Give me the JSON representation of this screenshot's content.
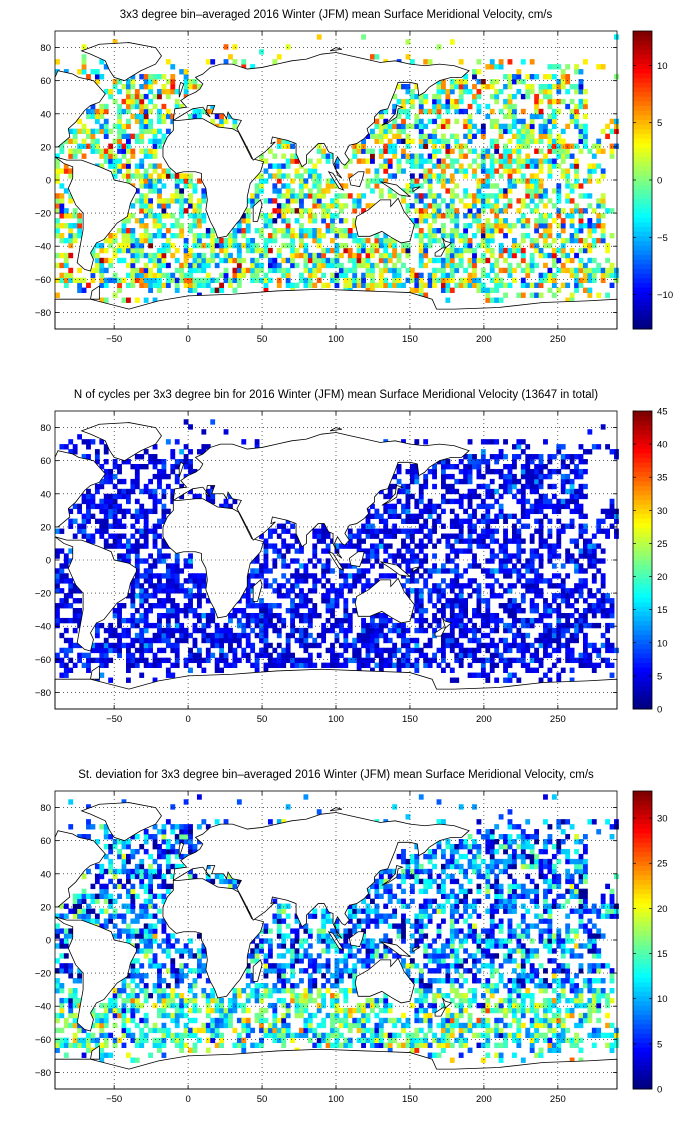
{
  "chart_data": [
    {
      "type": "heatmap",
      "title": "3x3 degree bin–averaged 2016 Winter (JFM) mean Surface Meridional Velocity, cm/s",
      "xlim": [
        -90,
        290
      ],
      "ylim": [
        -90,
        90
      ],
      "xticks": [
        -50,
        0,
        50,
        100,
        150,
        200,
        250
      ],
      "yticks": [
        80,
        60,
        40,
        20,
        0,
        -20,
        -40,
        -60,
        -80
      ],
      "bin_size_deg": 3,
      "grid": true,
      "colormap": "jet",
      "clim": [
        -13,
        13
      ],
      "colorbar_ticks": [
        10,
        5,
        0,
        -5,
        -10
      ],
      "colorbar_position": "right"
    },
    {
      "type": "heatmap",
      "title": "N of cycles per 3x3 degree bin for 2016 Winter (JFM) mean Surface Meridional Velocity (13647 in total)",
      "xlim": [
        -90,
        290
      ],
      "ylim": [
        -90,
        90
      ],
      "xticks": [
        -50,
        0,
        50,
        100,
        150,
        200,
        250
      ],
      "yticks": [
        80,
        60,
        40,
        20,
        0,
        -20,
        -40,
        -60,
        -80
      ],
      "bin_size_deg": 3,
      "grid": true,
      "colormap": "jet",
      "clim": [
        0,
        45
      ],
      "colorbar_ticks": [
        45,
        40,
        35,
        30,
        25,
        20,
        15,
        10,
        5,
        0
      ],
      "colorbar_position": "right"
    },
    {
      "type": "heatmap",
      "title": "St. deviation for 3x3 degree bin–averaged 2016 Winter (JFM) mean Surface Meridional Velocity, cm/s",
      "xlim": [
        -90,
        290
      ],
      "ylim": [
        -90,
        90
      ],
      "xticks": [
        -50,
        0,
        50,
        100,
        150,
        200,
        250
      ],
      "yticks": [
        80,
        60,
        40,
        20,
        0,
        -20,
        -40,
        -60,
        -80
      ],
      "bin_size_deg": 3,
      "grid": true,
      "colormap": "jet",
      "clim": [
        0,
        33
      ],
      "colorbar_ticks": [
        30,
        25,
        20,
        15,
        10,
        5,
        0
      ],
      "colorbar_position": "right"
    }
  ]
}
